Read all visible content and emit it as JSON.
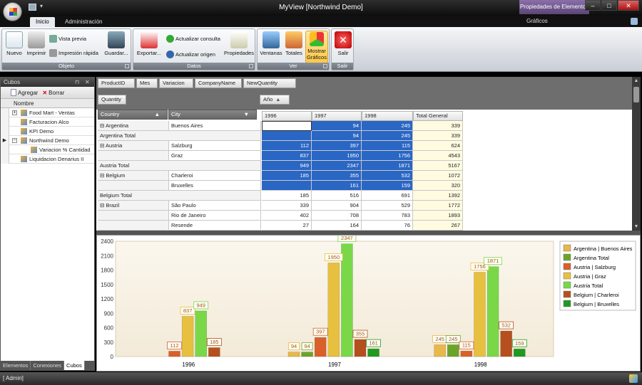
{
  "window": {
    "title": "MyView [Northwind Demo]",
    "contextual_tab": "Propiedades de Elementos"
  },
  "ribbon": {
    "tabs": [
      "Inicio",
      "Administración"
    ],
    "contextual_tab": "Gráficos",
    "groups": {
      "objeto": {
        "label": "Objeto",
        "nuevo": "Nuevo",
        "imprimir": "Imprimir",
        "vista_previa": "Vista previa",
        "impresion_rapida": "Impresión rápida",
        "guardar": "Guardar..."
      },
      "datos": {
        "label": "Datos",
        "exportar": "Exportar...",
        "actualizar_consulta": "Actualizar consulta",
        "actualizar_origen": "Actualizar origen",
        "propiedades": "Propiedades"
      },
      "ver": {
        "label": "Ver",
        "ventanas": "Ventanas",
        "totales": "Totales",
        "mostrar_graficos_1": "Mostrar",
        "mostrar_graficos_2": "Gráficos"
      },
      "salir": {
        "label": "Salir",
        "salir": "Salir"
      }
    }
  },
  "left_panel": {
    "title": "Cubos",
    "agregar": "Agregar",
    "borrar": "Borrar",
    "column_header": "Nombre",
    "items": [
      {
        "label": "Food Mart - Ventas",
        "level": 0,
        "expander": "+"
      },
      {
        "label": "Facturacion Alco",
        "level": 0,
        "expander": ""
      },
      {
        "label": "KPI Demo",
        "level": 0,
        "expander": ""
      },
      {
        "label": "Northwind Demo",
        "level": 0,
        "expander": "−"
      },
      {
        "label": "Variacion % Cantidad",
        "level": 1,
        "expander": ""
      },
      {
        "label": "Liquidacion Denarius II",
        "level": 0,
        "expander": ""
      }
    ],
    "bottom_tabs": [
      "Elementos",
      "Conexiones",
      "Cubos"
    ],
    "active_bottom_tab": "Cubos"
  },
  "pivot": {
    "filter_fields": [
      "ProductID",
      "Mes",
      "Variacion",
      "CompanyName",
      "NewQuantity"
    ],
    "data_field": "Quantity",
    "column_field": "Año",
    "row_fields": [
      "Country",
      "City"
    ],
    "column_headers": [
      "1996",
      "1997",
      "1998",
      "Total General"
    ],
    "rows": [
      {
        "country": "Argentina",
        "exp": "−",
        "city": "Buenos Aires",
        "v": [
          "",
          "94",
          "245",
          "339"
        ],
        "style": "detail"
      },
      {
        "country": "Argentina Total",
        "exp": "",
        "city": "",
        "v": [
          "",
          "94",
          "245",
          "339"
        ],
        "style": "total"
      },
      {
        "country": "Austria",
        "exp": "−",
        "city": "Salzburg",
        "v": [
          "112",
          "397",
          "115",
          "624"
        ],
        "style": "detail"
      },
      {
        "country": "",
        "exp": "",
        "city": "Graz",
        "v": [
          "837",
          "1950",
          "1756",
          "4543"
        ],
        "style": "detail"
      },
      {
        "country": "Austria Total",
        "exp": "",
        "city": "",
        "v": [
          "949",
          "2347",
          "1871",
          "5167"
        ],
        "style": "total"
      },
      {
        "country": "Belgium",
        "exp": "−",
        "city": "Charleroi",
        "v": [
          "185",
          "355",
          "532",
          "1072"
        ],
        "style": "detail"
      },
      {
        "country": "",
        "exp": "",
        "city": "Bruxelles",
        "v": [
          "",
          "161",
          "159",
          "320"
        ],
        "style": "detail"
      },
      {
        "country": "Belgium Total",
        "exp": "",
        "city": "",
        "v": [
          "185",
          "516",
          "691",
          "1392"
        ],
        "style": "plain"
      },
      {
        "country": "Brazil",
        "exp": "−",
        "city": "São Paulo",
        "v": [
          "339",
          "904",
          "529",
          "1772"
        ],
        "style": "plain"
      },
      {
        "country": "",
        "exp": "",
        "city": "Rio de Janeiro",
        "v": [
          "402",
          "708",
          "783",
          "1893"
        ],
        "style": "plain"
      },
      {
        "country": "",
        "exp": "",
        "city": "Resende",
        "v": [
          "27",
          "164",
          "76",
          "267"
        ],
        "style": "plain"
      }
    ]
  },
  "chart_data": {
    "type": "bar",
    "categories": [
      "1996",
      "1997",
      "1998"
    ],
    "ylim": [
      0,
      2400
    ],
    "yticks": [
      0,
      300,
      600,
      900,
      1200,
      1500,
      1800,
      2100,
      2400
    ],
    "grid": false,
    "legend_position": "right",
    "series": [
      {
        "name": "Argentina | Buenos Aires",
        "color": "#e8b84a",
        "values": [
          null,
          94,
          245
        ]
      },
      {
        "name": "Argentina Total",
        "color": "#6aa52a",
        "values": [
          null,
          94,
          245
        ]
      },
      {
        "name": "Austria | Salzburg",
        "color": "#d9602a",
        "values": [
          112,
          397,
          115
        ]
      },
      {
        "name": "Austria | Graz",
        "color": "#e8c040",
        "values": [
          837,
          1950,
          1756
        ]
      },
      {
        "name": "Austria Total",
        "color": "#7ad848",
        "values": [
          949,
          2347,
          1871
        ]
      },
      {
        "name": "Belgium | Charleroi",
        "color": "#b5501e",
        "values": [
          185,
          355,
          532
        ]
      },
      {
        "name": "Belgium | Bruxelles",
        "color": "#1f9a1f",
        "values": [
          null,
          161,
          159
        ]
      }
    ]
  },
  "status": {
    "user": "[ Admin]"
  }
}
